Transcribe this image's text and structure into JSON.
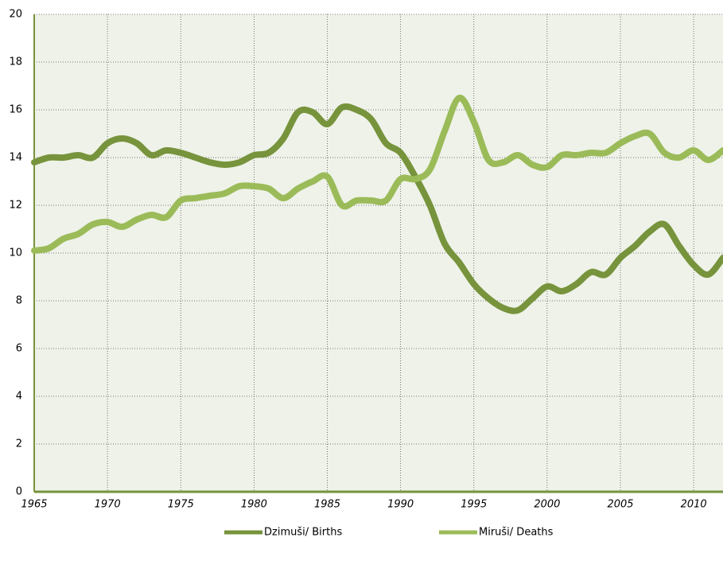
{
  "chart_data": {
    "type": "line",
    "x": [
      1965,
      1966,
      1967,
      1968,
      1969,
      1970,
      1971,
      1972,
      1973,
      1974,
      1975,
      1976,
      1977,
      1978,
      1979,
      1980,
      1981,
      1982,
      1983,
      1984,
      1985,
      1986,
      1987,
      1988,
      1989,
      1990,
      1991,
      1992,
      1993,
      1994,
      1995,
      1996,
      1997,
      1998,
      1999,
      2000,
      2001,
      2002,
      2003,
      2004,
      2005,
      2006,
      2007,
      2008,
      2009,
      2010,
      2011,
      2012
    ],
    "series": [
      {
        "name": "Dzimuši/ Births",
        "color": "#77933c",
        "values": [
          13.8,
          14.0,
          14.0,
          14.1,
          14.0,
          14.6,
          14.8,
          14.6,
          14.1,
          14.3,
          14.2,
          14.0,
          13.8,
          13.7,
          13.8,
          14.1,
          14.2,
          14.8,
          15.9,
          15.9,
          15.4,
          16.1,
          16.0,
          15.6,
          14.6,
          14.2,
          13.2,
          12.0,
          10.4,
          9.6,
          8.7,
          8.1,
          7.7,
          7.6,
          8.1,
          8.6,
          8.4,
          8.7,
          9.2,
          9.1,
          9.8,
          10.3,
          10.9,
          11.2,
          10.3,
          9.5,
          9.1,
          9.8
        ]
      },
      {
        "name": "Miruši/ Deaths",
        "color": "#9bbb59",
        "values": [
          10.1,
          10.2,
          10.6,
          10.8,
          11.2,
          11.3,
          11.1,
          11.4,
          11.6,
          11.5,
          12.2,
          12.3,
          12.4,
          12.5,
          12.8,
          12.8,
          12.7,
          12.3,
          12.7,
          13.0,
          13.2,
          12.0,
          12.2,
          12.2,
          12.2,
          13.1,
          13.1,
          13.5,
          15.1,
          16.5,
          15.5,
          13.9,
          13.8,
          14.1,
          13.7,
          13.6,
          14.1,
          14.1,
          14.2,
          14.2,
          14.6,
          14.9,
          15.0,
          14.2,
          14.0,
          14.3,
          13.9,
          14.3
        ]
      }
    ],
    "xlim": [
      1965,
      2012
    ],
    "xticks": [
      1965,
      1970,
      1975,
      1980,
      1985,
      1990,
      1995,
      2000,
      2005,
      2010
    ],
    "ylim": [
      0,
      20
    ],
    "yticks": [
      0,
      2,
      4,
      6,
      8,
      10,
      12,
      14,
      16,
      18,
      20
    ],
    "grid": true,
    "legend": "bottom"
  }
}
